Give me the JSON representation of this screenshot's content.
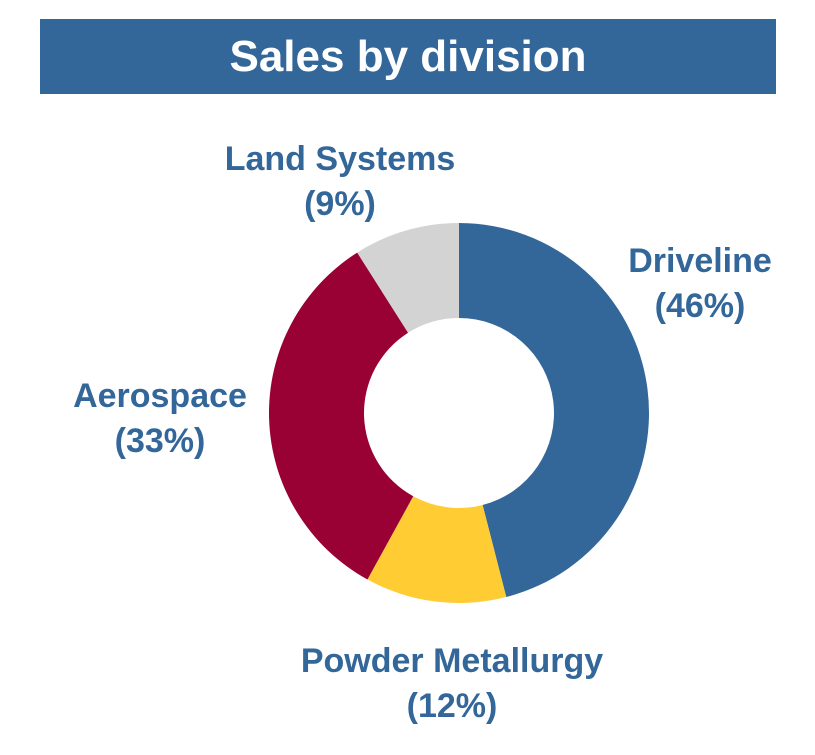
{
  "title": "Sales by division",
  "chart_data": {
    "type": "pie",
    "title": "Sales by division",
    "donut": true,
    "start_angle_deg": 0,
    "direction": "clockwise",
    "slices": [
      {
        "label": "Driveline",
        "value": 46,
        "percent_label": "(46%)",
        "color": "#336699"
      },
      {
        "label": "Powder Metallurgy",
        "value": 12,
        "percent_label": "(12%)",
        "color": "#FFCC33"
      },
      {
        "label": "Aerospace",
        "value": 33,
        "percent_label": "(33%)",
        "color": "#990033"
      },
      {
        "label": "Land Systems",
        "value": 9,
        "percent_label": "(9%)",
        "color": "#D3D3D3"
      }
    ],
    "label_color": "#336699",
    "legend": "none"
  }
}
